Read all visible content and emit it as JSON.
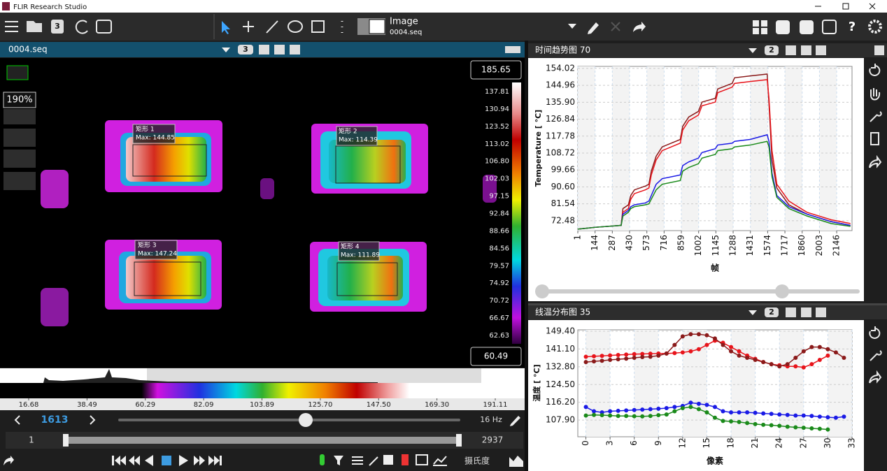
{
  "window": {
    "title": "FLIR Research Studio"
  },
  "toolbar": {
    "file_badge": "3",
    "source_label": "Image",
    "source_file": "0004.seq"
  },
  "image_panel": {
    "tab": "0004.seq",
    "badge": "3",
    "zoom": "190%",
    "rois": [
      {
        "name": "矩形 1",
        "max": "Max: 144.85"
      },
      {
        "name": "矩形 2",
        "max": "Max: 114.39"
      },
      {
        "name": "矩形 3",
        "max": "Max: 147.24"
      },
      {
        "name": "矩形 4",
        "max": "Max: 111.89"
      }
    ],
    "colorbar": {
      "max": 185.65,
      "min": 60.49,
      "ticks": [
        137.81,
        130.94,
        123.52,
        113.02,
        {
          "value": 106.8,
          "label": "106.80"
        },
        102.03,
        97.15,
        92.84,
        88.66,
        84.56,
        79.57,
        74.92,
        70.72,
        66.67,
        62.63
      ]
    }
  },
  "histogram": {
    "xlim": [
      5.96,
      202.09
    ],
    "xticks": [
      16.68,
      38.49,
      60.29,
      82.09,
      103.89,
      {
        "value": 125.7,
        "label": "125.70"
      },
      {
        "value": 147.5,
        "label": "147.50"
      },
      {
        "value": 169.3,
        "label": "169.30"
      },
      191.11
    ]
  },
  "playback": {
    "frame": 1613,
    "rate": "16 Hz",
    "start": 1,
    "end": 2937,
    "unit": "摄氏度"
  },
  "trend_chart": {
    "type": "line",
    "title": "时间趋势图 70",
    "badge": "2",
    "ylabel": "Temperature [ °C]",
    "xlabel": "帧",
    "xlim": [
      1,
      2273
    ],
    "ylim": [
      67.2,
      155.1
    ],
    "xticks": [
      1,
      144,
      287,
      430,
      573,
      716,
      859,
      1002,
      1145,
      1288,
      1431,
      1574,
      1717,
      1860,
      2003,
      2146
    ],
    "yticks": [
      154.02,
      144.96,
      {
        "value": 135.9,
        "label": "135.90"
      },
      126.84,
      117.78,
      108.72,
      99.66,
      {
        "value": 90.6,
        "label": "90.60"
      },
      81.54,
      72.48
    ],
    "grid": true,
    "markers": false,
    "x": [
      1,
      150,
      360,
      375,
      420,
      440,
      470,
      560,
      590,
      610,
      650,
      700,
      850,
      870,
      920,
      1000,
      1030,
      1140,
      1160,
      1280,
      1300,
      1430,
      1570,
      1585,
      1610,
      1650,
      1750,
      1900,
      2100,
      2260
    ],
    "series": [
      {
        "color": "#8b1a1a",
        "values": [
          68,
          69,
          70,
          79,
          81,
          86,
          89,
          91,
          92,
          99,
          107,
          112,
          116,
          123,
          128,
          131,
          136,
          138,
          143,
          146,
          149,
          150,
          151,
          135,
          105,
          90,
          81,
          76,
          72,
          70
        ]
      },
      {
        "color": "#e8141b",
        "values": [
          68,
          69,
          70,
          77,
          79,
          84,
          87,
          89,
          90,
          97,
          105,
          110,
          114,
          121,
          126,
          129,
          134,
          136,
          141,
          144,
          146,
          147,
          148,
          138,
          110,
          92,
          83,
          77,
          73,
          71
        ]
      },
      {
        "color": "#1a1ae6",
        "values": [
          68,
          69,
          70,
          76,
          78,
          80,
          81,
          82,
          83,
          86,
          92,
          95,
          97,
          102,
          104,
          106,
          109,
          111,
          113,
          114,
          115,
          116,
          118.5,
          115,
          98,
          86,
          80,
          76,
          72,
          70
        ]
      },
      {
        "color": "#1a8a1a",
        "values": [
          68,
          69,
          70,
          75,
          77,
          79,
          80,
          81,
          81.5,
          84,
          89,
          92,
          94,
          99,
          101,
          103,
          106,
          108,
          110,
          111,
          112,
          113,
          115,
          112,
          96,
          85,
          79,
          75,
          71,
          69.5
        ]
      }
    ]
  },
  "profile_chart": {
    "type": "line",
    "title": "线温分布图 35",
    "badge": "2",
    "ylabel": "温度 [ °C]",
    "xlabel": "像素",
    "xlim": [
      -1,
      33
    ],
    "ylim": [
      100.1,
      150.05
    ],
    "xticks": [
      0,
      3,
      6,
      9,
      12,
      15,
      18,
      21,
      24,
      27,
      30,
      33
    ],
    "yticks": [
      {
        "value": 149.4,
        "label": "149.40"
      },
      {
        "value": 141.1,
        "label": "141.10"
      },
      {
        "value": 132.8,
        "label": "132.80"
      },
      {
        "value": 124.5,
        "label": "124.50"
      },
      {
        "value": 116.2,
        "label": "116.20"
      },
      {
        "value": 107.9,
        "label": "107.90"
      }
    ],
    "grid": true,
    "markers": true,
    "x": [
      0,
      1,
      2,
      3,
      4,
      5,
      6,
      7,
      8,
      9,
      10,
      11,
      12,
      13,
      14,
      15,
      16,
      17,
      18,
      19,
      20,
      21,
      22,
      23,
      24,
      25,
      26,
      27,
      28,
      29,
      30,
      31,
      32
    ],
    "series": [
      {
        "color": "#e8141b",
        "values": [
          137.5,
          137.7,
          137.9,
          138.1,
          138.3,
          138.5,
          138.7,
          138.8,
          138.9,
          139,
          139,
          139.2,
          139.5,
          140,
          141,
          143,
          145,
          144,
          142,
          140,
          138,
          136.5,
          135,
          134,
          133.5,
          133,
          133,
          132.5,
          134,
          136,
          138,
          null,
          null
        ]
      },
      {
        "color": "#8b1a1a",
        "values": [
          135,
          135.3,
          135.6,
          136,
          136.3,
          136.6,
          137,
          137.3,
          137.5,
          138,
          139,
          143,
          147,
          148,
          148,
          147.5,
          146,
          143,
          140,
          138,
          137,
          136,
          135,
          134,
          133,
          134,
          137,
          140,
          142,
          142,
          141,
          139.5,
          137
        ]
      },
      {
        "color": "#1a1ae6",
        "values": [
          114,
          112,
          111.5,
          112,
          112.2,
          112.4,
          112.6,
          112.8,
          113,
          113.2,
          113.5,
          114,
          114.5,
          116,
          115.5,
          115,
          114,
          112,
          111.5,
          111.5,
          111.5,
          111.3,
          111,
          110.8,
          110.5,
          110.3,
          110,
          110,
          109.8,
          109.5,
          109.2,
          109,
          109.5
        ]
      },
      {
        "color": "#1a8a1a",
        "values": [
          110,
          110.3,
          110.2,
          110,
          109.8,
          109.8,
          109.7,
          109.6,
          109.8,
          110.2,
          110.5,
          112,
          113.5,
          114,
          113,
          111.5,
          109,
          107.5,
          107.3,
          107,
          106.5,
          106,
          105.7,
          105.5,
          105.2,
          104.8,
          104.5,
          104.3,
          104,
          103.8,
          103.5,
          null,
          null
        ]
      }
    ]
  }
}
